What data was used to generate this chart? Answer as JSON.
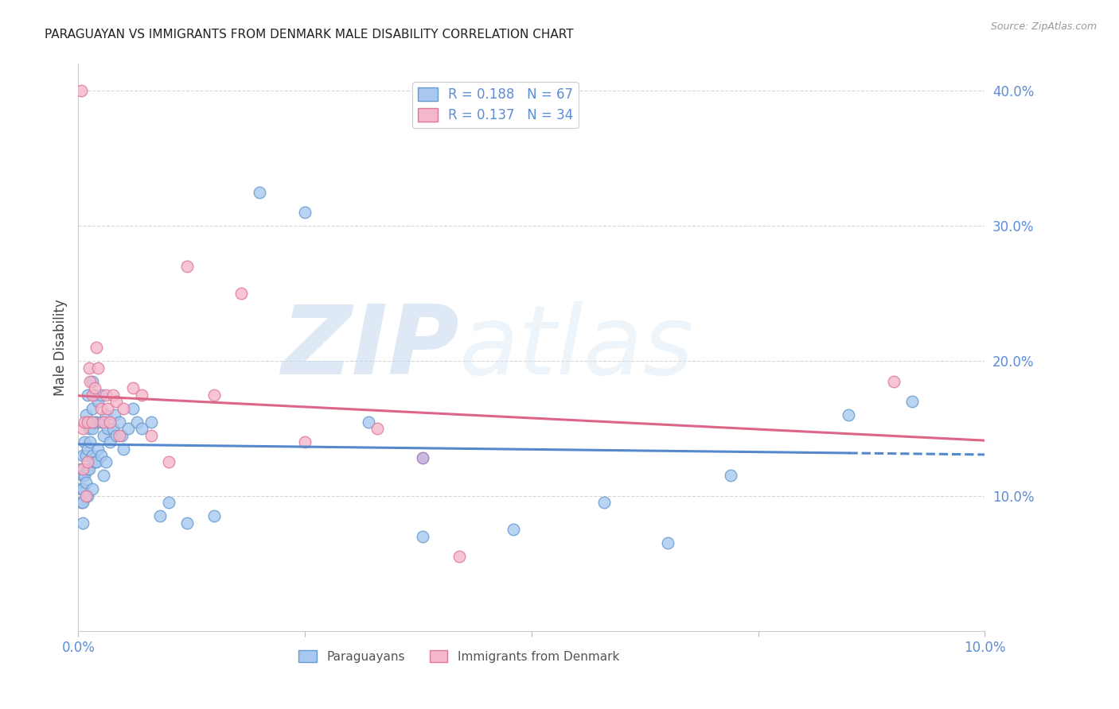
{
  "title": "PARAGUAYAN VS IMMIGRANTS FROM DENMARK MALE DISABILITY CORRELATION CHART",
  "source": "Source: ZipAtlas.com",
  "ylabel": "Male Disability",
  "watermark": "ZIPatlas",
  "paraguayan_color": "#a8c8f0",
  "denmark_color": "#f5b8cb",
  "paraguayan_edge": "#6699cc",
  "denmark_edge": "#dd7799",
  "trend_paraguayan_color": "#5588cc",
  "trend_denmark_color": "#dd6688",
  "xlim": [
    0.0,
    0.1
  ],
  "ylim": [
    0.0,
    0.42
  ],
  "yticks": [
    0.1,
    0.2,
    0.3,
    0.4
  ],
  "yticklabels": [
    "10.0%",
    "20.0%",
    "30.0%",
    "40.0%"
  ],
  "paraguayan_x": [
    0.0003,
    0.0003,
    0.0003,
    0.0005,
    0.0005,
    0.0005,
    0.0005,
    0.0005,
    0.0007,
    0.0007,
    0.0008,
    0.0008,
    0.0008,
    0.001,
    0.001,
    0.001,
    0.001,
    0.001,
    0.0012,
    0.0012,
    0.0013,
    0.0015,
    0.0015,
    0.0015,
    0.0015,
    0.0015,
    0.0018,
    0.0018,
    0.0018,
    0.002,
    0.002,
    0.0022,
    0.0022,
    0.0025,
    0.0025,
    0.0025,
    0.0028,
    0.0028,
    0.003,
    0.003,
    0.0032,
    0.0035,
    0.0038,
    0.004,
    0.0042,
    0.0045,
    0.0048,
    0.005,
    0.0055,
    0.006,
    0.0065,
    0.007,
    0.008,
    0.009,
    0.01,
    0.012,
    0.015,
    0.02,
    0.025,
    0.032,
    0.038,
    0.048,
    0.058,
    0.065,
    0.072,
    0.085,
    0.092
  ],
  "paraguayan_y": [
    0.12,
    0.105,
    0.095,
    0.13,
    0.115,
    0.105,
    0.095,
    0.08,
    0.14,
    0.115,
    0.16,
    0.13,
    0.11,
    0.175,
    0.155,
    0.135,
    0.12,
    0.1,
    0.15,
    0.12,
    0.14,
    0.185,
    0.165,
    0.15,
    0.13,
    0.105,
    0.175,
    0.155,
    0.125,
    0.155,
    0.125,
    0.17,
    0.135,
    0.175,
    0.155,
    0.13,
    0.145,
    0.115,
    0.16,
    0.125,
    0.15,
    0.14,
    0.15,
    0.16,
    0.145,
    0.155,
    0.145,
    0.135,
    0.15,
    0.165,
    0.155,
    0.15,
    0.155,
    0.085,
    0.095,
    0.08,
    0.085,
    0.325,
    0.31,
    0.155,
    0.07,
    0.075,
    0.095,
    0.065,
    0.115,
    0.16,
    0.17
  ],
  "denmark_x": [
    0.0003,
    0.0005,
    0.0005,
    0.0007,
    0.0008,
    0.001,
    0.001,
    0.0012,
    0.0013,
    0.0015,
    0.0015,
    0.0018,
    0.002,
    0.0022,
    0.0025,
    0.0028,
    0.003,
    0.0032,
    0.0035,
    0.0038,
    0.0042,
    0.0045,
    0.005,
    0.006,
    0.007,
    0.008,
    0.01,
    0.012,
    0.015,
    0.018,
    0.025,
    0.033,
    0.042,
    0.09
  ],
  "denmark_y": [
    0.4,
    0.15,
    0.12,
    0.155,
    0.1,
    0.155,
    0.125,
    0.195,
    0.185,
    0.175,
    0.155,
    0.18,
    0.21,
    0.195,
    0.165,
    0.155,
    0.175,
    0.165,
    0.155,
    0.175,
    0.17,
    0.145,
    0.165,
    0.18,
    0.175,
    0.145,
    0.125,
    0.27,
    0.175,
    0.25,
    0.14,
    0.15,
    0.055,
    0.185
  ],
  "purple_x": [
    0.038
  ],
  "purple_y": [
    0.128
  ],
  "trend_par_x0": 0.0,
  "trend_par_x1": 0.085,
  "trend_par_dash_x1": 0.1,
  "trend_den_x0": 0.0,
  "trend_den_x1": 0.1,
  "background_color": "#ffffff",
  "grid_color": "#cccccc",
  "tick_color": "#5b8dd9",
  "title_fontsize": 11,
  "legend_R1": "R = 0.188",
  "legend_N1": "N = 67",
  "legend_R2": "R = 0.137",
  "legend_N2": "N = 34"
}
